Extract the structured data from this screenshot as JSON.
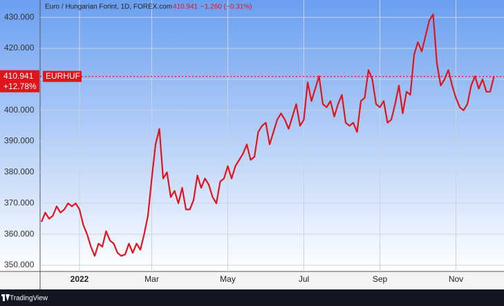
{
  "chart_data": {
    "type": "line",
    "title": "Euro / Hungarian Forint, 1D, FOREX.com",
    "last_price": 410.941,
    "change": "−1.260 (−0.31%)",
    "change_percent": "+12.78%",
    "symbol": "EURHUF",
    "brand": "TradingView",
    "categories": [
      null,
      null,
      null,
      null,
      null,
      null,
      null,
      null,
      null,
      null,
      "2022",
      null,
      null,
      null,
      null,
      null,
      null,
      null,
      null,
      null,
      null,
      null,
      null,
      null,
      null,
      null,
      null,
      null,
      null,
      "Mar",
      null,
      null,
      null,
      null,
      null,
      null,
      null,
      null,
      null,
      null,
      null,
      null,
      null,
      null,
      null,
      null,
      null,
      null,
      null,
      "May",
      null,
      null,
      null,
      null,
      null,
      null,
      null,
      null,
      null,
      null,
      null,
      null,
      null,
      null,
      null,
      null,
      null,
      null,
      null,
      "Jul",
      null,
      null,
      null,
      null,
      null,
      null,
      null,
      null,
      null,
      null,
      null,
      null,
      null,
      null,
      null,
      null,
      null,
      null,
      null,
      "Sep",
      null,
      null,
      null,
      null,
      null,
      null,
      null,
      null,
      null,
      null,
      null,
      null,
      null,
      null,
      null,
      null,
      null,
      null,
      null,
      "Nov",
      null,
      null,
      null,
      null,
      null,
      null,
      null,
      null,
      null,
      null
    ],
    "series": [
      {
        "name": "EURHUF",
        "color": "#e0151b",
        "values": [
          364,
          367,
          365,
          366,
          369,
          367,
          368,
          370,
          369,
          370,
          368,
          363,
          360,
          356,
          353,
          357,
          356,
          361,
          358,
          357,
          354,
          353,
          353.5,
          357,
          354,
          357,
          355,
          360,
          366,
          378,
          389,
          394,
          378,
          380,
          372,
          374,
          370,
          375,
          368,
          368,
          371,
          379,
          375,
          378,
          376,
          372,
          370,
          377,
          378,
          382,
          378,
          382,
          384,
          386,
          389,
          384,
          385,
          393,
          395,
          396,
          389,
          393,
          397,
          399,
          397,
          394,
          398,
          402,
          395,
          397,
          409,
          403,
          407,
          411,
          402,
          401,
          403,
          398,
          402,
          405,
          396,
          395,
          396,
          393,
          403,
          404,
          413,
          410,
          402,
          401,
          403,
          396,
          397,
          402,
          408,
          399,
          406,
          405,
          418,
          422,
          419,
          424,
          429,
          431,
          415,
          408,
          410,
          413,
          408,
          404,
          401,
          400,
          402,
          408,
          411,
          407,
          410,
          406,
          406,
          410.941
        ]
      }
    ],
    "ylim": [
      348,
      435.6
    ],
    "yticks": [
      {
        "value": 350,
        "label": "350.000"
      },
      {
        "value": 360,
        "label": "360.000"
      },
      {
        "value": 370,
        "label": "370.000"
      },
      {
        "value": 380,
        "label": "380.000"
      },
      {
        "value": 390,
        "label": "390.000"
      },
      {
        "value": 400,
        "label": "400.000"
      },
      {
        "value": 410,
        "label": "410.000"
      },
      {
        "value": 420,
        "label": "420.000"
      },
      {
        "value": 430,
        "label": "430.000"
      }
    ],
    "grid": true
  }
}
